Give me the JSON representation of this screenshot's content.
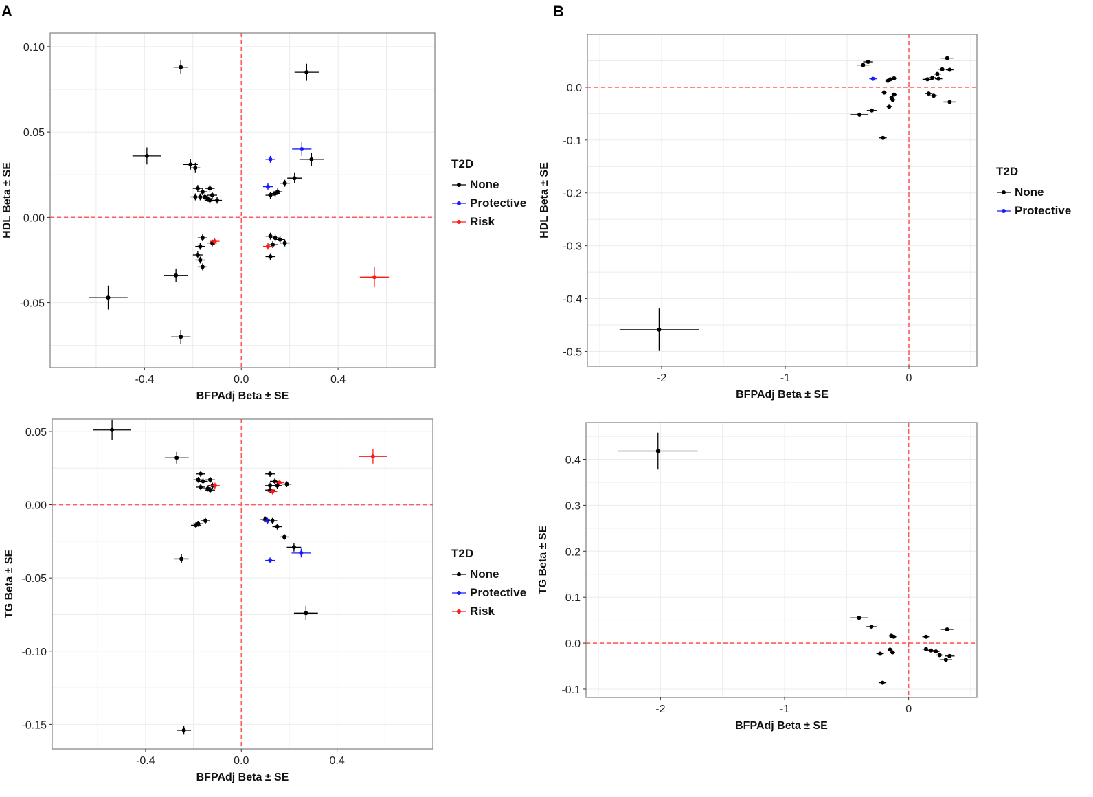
{
  "panel_labels": {
    "a": "A",
    "b": "B"
  },
  "colors": {
    "None": "#000000",
    "Protective": "#1a1aff",
    "Risk": "#ff1a1a",
    "refline": "#ff5c5c",
    "grid": "#ebebeb",
    "frame": "#7f7f7f"
  },
  "chart_data": [
    {
      "id": "a-hdl",
      "type": "scatter",
      "title": "",
      "xlabel": "BFPAdj Beta ± SE",
      "ylabel": "HDL Beta ± SE",
      "xlim": [
        -0.79,
        0.8
      ],
      "ylim": [
        -0.088,
        0.108
      ],
      "xticks": [
        -0.4,
        0.0,
        0.4
      ],
      "xtick_labels": [
        "-0.4",
        "0.0",
        "0.4"
      ],
      "yticks": [
        -0.05,
        0.0,
        0.05,
        0.1
      ],
      "ytick_labels": [
        "-0.05",
        "0.00",
        "0.05",
        "0.10"
      ],
      "grid": true,
      "legend": {
        "title": "T2D",
        "entries": [
          "None",
          "Protective",
          "Risk"
        ],
        "position": "right"
      },
      "points": [
        {
          "x": -0.25,
          "y": 0.088,
          "xe": 0.03,
          "ye": 0.004,
          "g": "None"
        },
        {
          "x": 0.27,
          "y": 0.085,
          "xe": 0.05,
          "ye": 0.005,
          "g": "None"
        },
        {
          "x": -0.39,
          "y": 0.036,
          "xe": 0.06,
          "ye": 0.005,
          "g": "None"
        },
        {
          "x": -0.21,
          "y": 0.031,
          "xe": 0.03,
          "ye": 0.003,
          "g": "None"
        },
        {
          "x": -0.19,
          "y": 0.029,
          "xe": 0.02,
          "ye": 0.003,
          "g": "None"
        },
        {
          "x": 0.12,
          "y": 0.034,
          "xe": 0.02,
          "ye": 0.002,
          "g": "Protective"
        },
        {
          "x": 0.25,
          "y": 0.04,
          "xe": 0.04,
          "ye": 0.004,
          "g": "Protective"
        },
        {
          "x": 0.29,
          "y": 0.034,
          "xe": 0.05,
          "ye": 0.004,
          "g": "None"
        },
        {
          "x": 0.22,
          "y": 0.023,
          "xe": 0.03,
          "ye": 0.003,
          "g": "None"
        },
        {
          "x": 0.18,
          "y": 0.02,
          "xe": 0.02,
          "ye": 0.002,
          "g": "None"
        },
        {
          "x": 0.11,
          "y": 0.018,
          "xe": 0.02,
          "ye": 0.002,
          "g": "Protective"
        },
        {
          "x": 0.15,
          "y": 0.015,
          "xe": 0.02,
          "ye": 0.002,
          "g": "None"
        },
        {
          "x": 0.12,
          "y": 0.013,
          "xe": 0.02,
          "ye": 0.002,
          "g": "None"
        },
        {
          "x": 0.14,
          "y": 0.014,
          "xe": 0.02,
          "ye": 0.002,
          "g": "None"
        },
        {
          "x": -0.18,
          "y": 0.017,
          "xe": 0.02,
          "ye": 0.002,
          "g": "None"
        },
        {
          "x": -0.16,
          "y": 0.015,
          "xe": 0.02,
          "ye": 0.002,
          "g": "None"
        },
        {
          "x": -0.13,
          "y": 0.017,
          "xe": 0.02,
          "ye": 0.002,
          "g": "None"
        },
        {
          "x": -0.19,
          "y": 0.012,
          "xe": 0.02,
          "ye": 0.002,
          "g": "None"
        },
        {
          "x": -0.17,
          "y": 0.012,
          "xe": 0.02,
          "ye": 0.002,
          "g": "None"
        },
        {
          "x": -0.15,
          "y": 0.012,
          "xe": 0.02,
          "ye": 0.002,
          "g": "None"
        },
        {
          "x": -0.14,
          "y": 0.011,
          "xe": 0.02,
          "ye": 0.002,
          "g": "None"
        },
        {
          "x": -0.12,
          "y": 0.013,
          "xe": 0.02,
          "ye": 0.002,
          "g": "None"
        },
        {
          "x": -0.1,
          "y": 0.01,
          "xe": 0.02,
          "ye": 0.002,
          "g": "None"
        },
        {
          "x": -0.13,
          "y": 0.01,
          "xe": 0.02,
          "ye": 0.002,
          "g": "None"
        },
        {
          "x": -0.16,
          "y": -0.012,
          "xe": 0.02,
          "ye": 0.002,
          "g": "None"
        },
        {
          "x": -0.17,
          "y": -0.017,
          "xe": 0.02,
          "ye": 0.002,
          "g": "None"
        },
        {
          "x": -0.12,
          "y": -0.015,
          "xe": 0.02,
          "ye": 0.002,
          "g": "None"
        },
        {
          "x": -0.11,
          "y": -0.014,
          "xe": 0.02,
          "ye": 0.002,
          "g": "Risk"
        },
        {
          "x": -0.18,
          "y": -0.022,
          "xe": 0.02,
          "ye": 0.002,
          "g": "None"
        },
        {
          "x": -0.17,
          "y": -0.025,
          "xe": 0.02,
          "ye": 0.002,
          "g": "None"
        },
        {
          "x": -0.16,
          "y": -0.029,
          "xe": 0.02,
          "ye": 0.002,
          "g": "None"
        },
        {
          "x": 0.12,
          "y": -0.011,
          "xe": 0.02,
          "ye": 0.002,
          "g": "None"
        },
        {
          "x": 0.14,
          "y": -0.012,
          "xe": 0.02,
          "ye": 0.002,
          "g": "None"
        },
        {
          "x": 0.16,
          "y": -0.013,
          "xe": 0.02,
          "ye": 0.002,
          "g": "None"
        },
        {
          "x": 0.18,
          "y": -0.015,
          "xe": 0.02,
          "ye": 0.002,
          "g": "None"
        },
        {
          "x": 0.13,
          "y": -0.016,
          "xe": 0.02,
          "ye": 0.002,
          "g": "None"
        },
        {
          "x": 0.11,
          "y": -0.017,
          "xe": 0.02,
          "ye": 0.002,
          "g": "Risk"
        },
        {
          "x": 0.12,
          "y": -0.023,
          "xe": 0.02,
          "ye": 0.002,
          "g": "None"
        },
        {
          "x": 0.55,
          "y": -0.035,
          "xe": 0.06,
          "ye": 0.006,
          "g": "Risk"
        },
        {
          "x": -0.27,
          "y": -0.034,
          "xe": 0.05,
          "ye": 0.004,
          "g": "None"
        },
        {
          "x": -0.55,
          "y": -0.047,
          "xe": 0.08,
          "ye": 0.007,
          "g": "None"
        },
        {
          "x": -0.25,
          "y": -0.07,
          "xe": 0.04,
          "ye": 0.004,
          "g": "None"
        }
      ]
    },
    {
      "id": "a-tg",
      "type": "scatter",
      "title": "",
      "xlabel": "BFPAdj Beta ± SE",
      "ylabel": "TG Beta ± SE",
      "xlim": [
        -0.79,
        0.8
      ],
      "ylim": [
        -0.1667,
        0.0584
      ],
      "xticks": [
        -0.4,
        0.0,
        0.4
      ],
      "xtick_labels": [
        "-0.4",
        "0.0",
        "0.4"
      ],
      "yticks": [
        -0.15,
        -0.1,
        -0.05,
        0.0,
        0.05
      ],
      "ytick_labels": [
        "-0.15",
        "-0.10",
        "-0.05",
        "0.00",
        "0.05"
      ],
      "grid": true,
      "legend": {
        "title": "T2D",
        "entries": [
          "None",
          "Protective",
          "Risk"
        ],
        "position": "right"
      },
      "points": [
        {
          "x": -0.54,
          "y": 0.051,
          "xe": 0.08,
          "ye": 0.007,
          "g": "None"
        },
        {
          "x": -0.27,
          "y": 0.032,
          "xe": 0.05,
          "ye": 0.004,
          "g": "None"
        },
        {
          "x": -0.17,
          "y": 0.021,
          "xe": 0.02,
          "ye": 0.002,
          "g": "None"
        },
        {
          "x": -0.18,
          "y": 0.017,
          "xe": 0.02,
          "ye": 0.002,
          "g": "None"
        },
        {
          "x": -0.16,
          "y": 0.016,
          "xe": 0.02,
          "ye": 0.002,
          "g": "None"
        },
        {
          "x": -0.13,
          "y": 0.017,
          "xe": 0.02,
          "ye": 0.002,
          "g": "None"
        },
        {
          "x": -0.17,
          "y": 0.012,
          "xe": 0.02,
          "ye": 0.002,
          "g": "None"
        },
        {
          "x": -0.14,
          "y": 0.011,
          "xe": 0.02,
          "ye": 0.002,
          "g": "None"
        },
        {
          "x": -0.12,
          "y": 0.013,
          "xe": 0.02,
          "ye": 0.002,
          "g": "None"
        },
        {
          "x": -0.11,
          "y": 0.013,
          "xe": 0.02,
          "ye": 0.002,
          "g": "Risk"
        },
        {
          "x": -0.13,
          "y": 0.01,
          "xe": 0.02,
          "ye": 0.002,
          "g": "None"
        },
        {
          "x": 0.12,
          "y": 0.021,
          "xe": 0.02,
          "ye": 0.002,
          "g": "None"
        },
        {
          "x": 0.14,
          "y": 0.016,
          "xe": 0.02,
          "ye": 0.002,
          "g": "None"
        },
        {
          "x": 0.16,
          "y": 0.015,
          "xe": 0.02,
          "ye": 0.002,
          "g": "Risk"
        },
        {
          "x": 0.19,
          "y": 0.014,
          "xe": 0.02,
          "ye": 0.002,
          "g": "None"
        },
        {
          "x": 0.12,
          "y": 0.013,
          "xe": 0.02,
          "ye": 0.002,
          "g": "None"
        },
        {
          "x": 0.15,
          "y": 0.013,
          "xe": 0.02,
          "ye": 0.002,
          "g": "None"
        },
        {
          "x": 0.12,
          "y": 0.01,
          "xe": 0.02,
          "ye": 0.002,
          "g": "None"
        },
        {
          "x": 0.13,
          "y": 0.009,
          "xe": 0.02,
          "ye": 0.002,
          "g": "Risk"
        },
        {
          "x": 0.55,
          "y": 0.033,
          "xe": 0.06,
          "ye": 0.005,
          "g": "Risk"
        },
        {
          "x": -0.18,
          "y": -0.013,
          "xe": 0.02,
          "ye": 0.002,
          "g": "None"
        },
        {
          "x": -0.19,
          "y": -0.014,
          "xe": 0.02,
          "ye": 0.002,
          "g": "None"
        },
        {
          "x": -0.15,
          "y": -0.011,
          "xe": 0.02,
          "ye": 0.002,
          "g": "None"
        },
        {
          "x": 0.1,
          "y": -0.01,
          "xe": 0.02,
          "ye": 0.002,
          "g": "None"
        },
        {
          "x": 0.11,
          "y": -0.011,
          "xe": 0.02,
          "ye": 0.002,
          "g": "Protective"
        },
        {
          "x": 0.13,
          "y": -0.011,
          "xe": 0.02,
          "ye": 0.002,
          "g": "None"
        },
        {
          "x": 0.15,
          "y": -0.015,
          "xe": 0.02,
          "ye": 0.002,
          "g": "None"
        },
        {
          "x": 0.18,
          "y": -0.022,
          "xe": 0.02,
          "ye": 0.002,
          "g": "None"
        },
        {
          "x": 0.22,
          "y": -0.029,
          "xe": 0.03,
          "ye": 0.003,
          "g": "None"
        },
        {
          "x": 0.25,
          "y": -0.033,
          "xe": 0.04,
          "ye": 0.003,
          "g": "Protective"
        },
        {
          "x": 0.12,
          "y": -0.038,
          "xe": 0.02,
          "ye": 0.002,
          "g": "Protective"
        },
        {
          "x": -0.25,
          "y": -0.037,
          "xe": 0.03,
          "ye": 0.003,
          "g": "None"
        },
        {
          "x": 0.27,
          "y": -0.074,
          "xe": 0.05,
          "ye": 0.005,
          "g": "None"
        },
        {
          "x": -0.24,
          "y": -0.154,
          "xe": 0.03,
          "ye": 0.003,
          "g": "None"
        }
      ]
    },
    {
      "id": "b-hdl",
      "type": "scatter",
      "title": "",
      "xlabel": "BFPAdj Beta ± SE",
      "ylabel": "HDL Beta ± SE",
      "xlim": [
        -2.6,
        0.55
      ],
      "ylim": [
        -0.528,
        0.1
      ],
      "xticks": [
        -2,
        -1,
        0
      ],
      "xtick_labels": [
        "-2",
        "-1",
        "0"
      ],
      "yticks": [
        -0.5,
        -0.4,
        -0.3,
        -0.2,
        -0.1,
        0.0
      ],
      "ytick_labels": [
        "-0.5",
        "-0.4",
        "-0.3",
        "-0.2",
        "-0.1",
        "0.0"
      ],
      "grid": true,
      "legend": {
        "title": "T2D",
        "entries": [
          "None",
          "Protective"
        ],
        "position": "right"
      },
      "points": [
        {
          "x": -2.02,
          "y": -0.459,
          "xe": 0.32,
          "ye": 0.04,
          "g": "None"
        },
        {
          "x": -0.37,
          "y": 0.042,
          "xe": 0.05,
          "ye": 0.003,
          "g": "None"
        },
        {
          "x": -0.33,
          "y": 0.048,
          "xe": 0.04,
          "ye": 0.003,
          "g": "None"
        },
        {
          "x": -0.29,
          "y": 0.016,
          "xe": 0.03,
          "ye": 0.002,
          "g": "Protective"
        },
        {
          "x": -0.4,
          "y": -0.052,
          "xe": 0.07,
          "ye": 0.004,
          "g": "None"
        },
        {
          "x": -0.3,
          "y": -0.044,
          "xe": 0.04,
          "ye": 0.003,
          "g": "None"
        },
        {
          "x": -0.21,
          "y": -0.096,
          "xe": 0.03,
          "ye": 0.003,
          "g": "None"
        },
        {
          "x": -0.17,
          "y": 0.012,
          "xe": 0.02,
          "ye": 0.002,
          "g": "None"
        },
        {
          "x": -0.15,
          "y": 0.015,
          "xe": 0.02,
          "ye": 0.002,
          "g": "None"
        },
        {
          "x": -0.12,
          "y": 0.017,
          "xe": 0.02,
          "ye": 0.002,
          "g": "None"
        },
        {
          "x": -0.2,
          "y": -0.01,
          "xe": 0.02,
          "ye": 0.002,
          "g": "None"
        },
        {
          "x": -0.12,
          "y": -0.014,
          "xe": 0.02,
          "ye": 0.002,
          "g": "None"
        },
        {
          "x": -0.14,
          "y": -0.02,
          "xe": 0.02,
          "ye": 0.002,
          "g": "None"
        },
        {
          "x": -0.16,
          "y": -0.037,
          "xe": 0.02,
          "ye": 0.002,
          "g": "None"
        },
        {
          "x": -0.13,
          "y": -0.024,
          "xe": 0.02,
          "ye": 0.002,
          "g": "None"
        },
        {
          "x": 0.15,
          "y": 0.015,
          "xe": 0.04,
          "ye": 0.002,
          "g": "None"
        },
        {
          "x": 0.19,
          "y": 0.018,
          "xe": 0.03,
          "ye": 0.002,
          "g": "None"
        },
        {
          "x": 0.23,
          "y": 0.025,
          "xe": 0.03,
          "ye": 0.002,
          "g": "None"
        },
        {
          "x": 0.27,
          "y": 0.034,
          "xe": 0.03,
          "ye": 0.002,
          "g": "None"
        },
        {
          "x": 0.31,
          "y": 0.055,
          "xe": 0.05,
          "ye": 0.003,
          "g": "None"
        },
        {
          "x": 0.33,
          "y": 0.033,
          "xe": 0.03,
          "ye": 0.002,
          "g": "None"
        },
        {
          "x": 0.24,
          "y": 0.016,
          "xe": 0.03,
          "ye": 0.002,
          "g": "None"
        },
        {
          "x": 0.16,
          "y": -0.012,
          "xe": 0.03,
          "ye": 0.002,
          "g": "None"
        },
        {
          "x": 0.2,
          "y": -0.016,
          "xe": 0.03,
          "ye": 0.002,
          "g": "None"
        },
        {
          "x": 0.33,
          "y": -0.028,
          "xe": 0.05,
          "ye": 0.002,
          "g": "None"
        }
      ]
    },
    {
      "id": "b-tg",
      "type": "scatter",
      "title": "",
      "xlabel": "BFPAdj Beta ± SE",
      "ylabel": "TG Beta ± SE",
      "xlim": [
        -2.6,
        0.55
      ],
      "ylim": [
        -0.118,
        0.48
      ],
      "xticks": [
        -2,
        -1,
        0
      ],
      "xtick_labels": [
        "-2",
        "-1",
        "0"
      ],
      "yticks": [
        -0.1,
        0.0,
        0.1,
        0.2,
        0.3,
        0.4
      ],
      "ytick_labels": [
        "-0.1",
        "0.0",
        "0.1",
        "0.2",
        "0.3",
        "0.4"
      ],
      "grid": true,
      "legend": null,
      "points": [
        {
          "x": -2.02,
          "y": 0.418,
          "xe": 0.32,
          "ye": 0.04,
          "g": "None"
        },
        {
          "x": -0.4,
          "y": 0.055,
          "xe": 0.07,
          "ye": 0.004,
          "g": "None"
        },
        {
          "x": -0.3,
          "y": 0.036,
          "xe": 0.04,
          "ye": 0.003,
          "g": "None"
        },
        {
          "x": -0.14,
          "y": 0.016,
          "xe": 0.02,
          "ye": 0.002,
          "g": "None"
        },
        {
          "x": -0.12,
          "y": 0.014,
          "xe": 0.02,
          "ye": 0.002,
          "g": "None"
        },
        {
          "x": -0.23,
          "y": -0.023,
          "xe": 0.03,
          "ye": 0.002,
          "g": "None"
        },
        {
          "x": -0.15,
          "y": -0.014,
          "xe": 0.02,
          "ye": 0.002,
          "g": "None"
        },
        {
          "x": -0.13,
          "y": -0.02,
          "xe": 0.02,
          "ye": 0.002,
          "g": "None"
        },
        {
          "x": -0.21,
          "y": -0.086,
          "xe": 0.03,
          "ye": 0.003,
          "g": "None"
        },
        {
          "x": 0.14,
          "y": 0.014,
          "xe": 0.03,
          "ye": 0.002,
          "g": "None"
        },
        {
          "x": 0.31,
          "y": 0.03,
          "xe": 0.05,
          "ye": 0.002,
          "g": "None"
        },
        {
          "x": 0.14,
          "y": -0.013,
          "xe": 0.03,
          "ye": 0.002,
          "g": "None"
        },
        {
          "x": 0.18,
          "y": -0.016,
          "xe": 0.03,
          "ye": 0.002,
          "g": "None"
        },
        {
          "x": 0.22,
          "y": -0.018,
          "xe": 0.03,
          "ye": 0.002,
          "g": "None"
        },
        {
          "x": 0.25,
          "y": -0.026,
          "xe": 0.03,
          "ye": 0.002,
          "g": "None"
        },
        {
          "x": 0.3,
          "y": -0.036,
          "xe": 0.05,
          "ye": 0.003,
          "g": "None"
        },
        {
          "x": 0.33,
          "y": -0.028,
          "xe": 0.04,
          "ye": 0.002,
          "g": "None"
        }
      ]
    }
  ]
}
